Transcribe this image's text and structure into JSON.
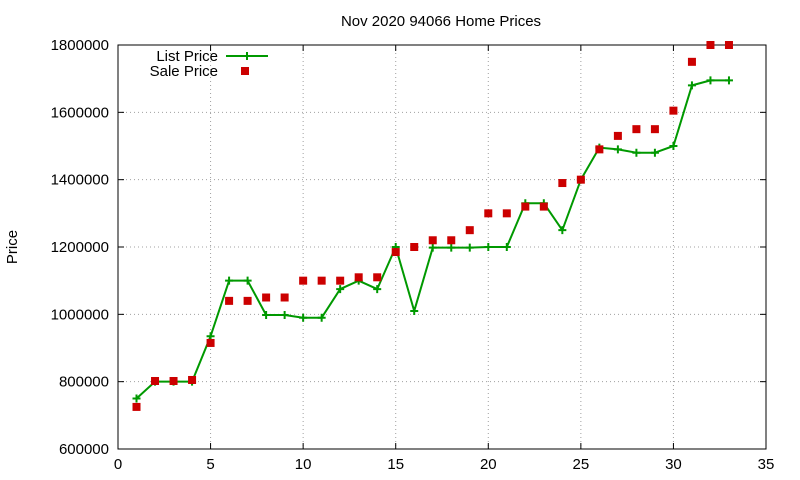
{
  "chart_data": {
    "type": "line",
    "title": "Nov 2020 94066 Home Prices",
    "xlabel": "",
    "ylabel": "Price",
    "xlim": [
      0,
      35
    ],
    "ylim": [
      600000,
      1800000
    ],
    "x_ticks": [
      0,
      5,
      10,
      15,
      20,
      25,
      30,
      35
    ],
    "y_ticks": [
      600000,
      800000,
      1000000,
      1200000,
      1400000,
      1600000,
      1800000
    ],
    "grid": true,
    "legend_position": "top-left",
    "series": [
      {
        "name": "List Price",
        "style": "line with plus markers",
        "color": "#009900",
        "x": [
          1,
          2,
          3,
          4,
          5,
          6,
          7,
          8,
          9,
          10,
          11,
          12,
          13,
          14,
          15,
          16,
          17,
          18,
          19,
          20,
          21,
          22,
          23,
          24,
          25,
          26,
          27,
          28,
          29,
          30,
          31,
          32,
          33
        ],
        "values": [
          750000,
          800000,
          800000,
          800000,
          935000,
          1100000,
          1100000,
          998000,
          998000,
          990000,
          990000,
          1075000,
          1100000,
          1075000,
          1200000,
          1010000,
          1198000,
          1198000,
          1198000,
          1200000,
          1200000,
          1330000,
          1330000,
          1250000,
          1400000,
          1495000,
          1490000,
          1480000,
          1480000,
          1500000,
          1680000,
          1695000,
          1695000
        ]
      },
      {
        "name": "Sale Price",
        "style": "square markers",
        "color": "#cc0000",
        "x": [
          1,
          2,
          3,
          4,
          5,
          6,
          7,
          8,
          9,
          10,
          11,
          12,
          13,
          14,
          15,
          16,
          17,
          18,
          19,
          20,
          21,
          22,
          23,
          24,
          25,
          26,
          27,
          28,
          29,
          30,
          31,
          32,
          33
        ],
        "values": [
          725000,
          802000,
          802000,
          805000,
          915000,
          1040000,
          1040000,
          1050000,
          1050000,
          1100000,
          1100000,
          1100000,
          1110000,
          1110000,
          1185000,
          1200000,
          1220000,
          1220000,
          1250000,
          1300000,
          1300000,
          1320000,
          1320000,
          1390000,
          1400000,
          1490000,
          1530000,
          1550000,
          1550000,
          1605000,
          1750000,
          1800000,
          1800000
        ]
      }
    ]
  }
}
